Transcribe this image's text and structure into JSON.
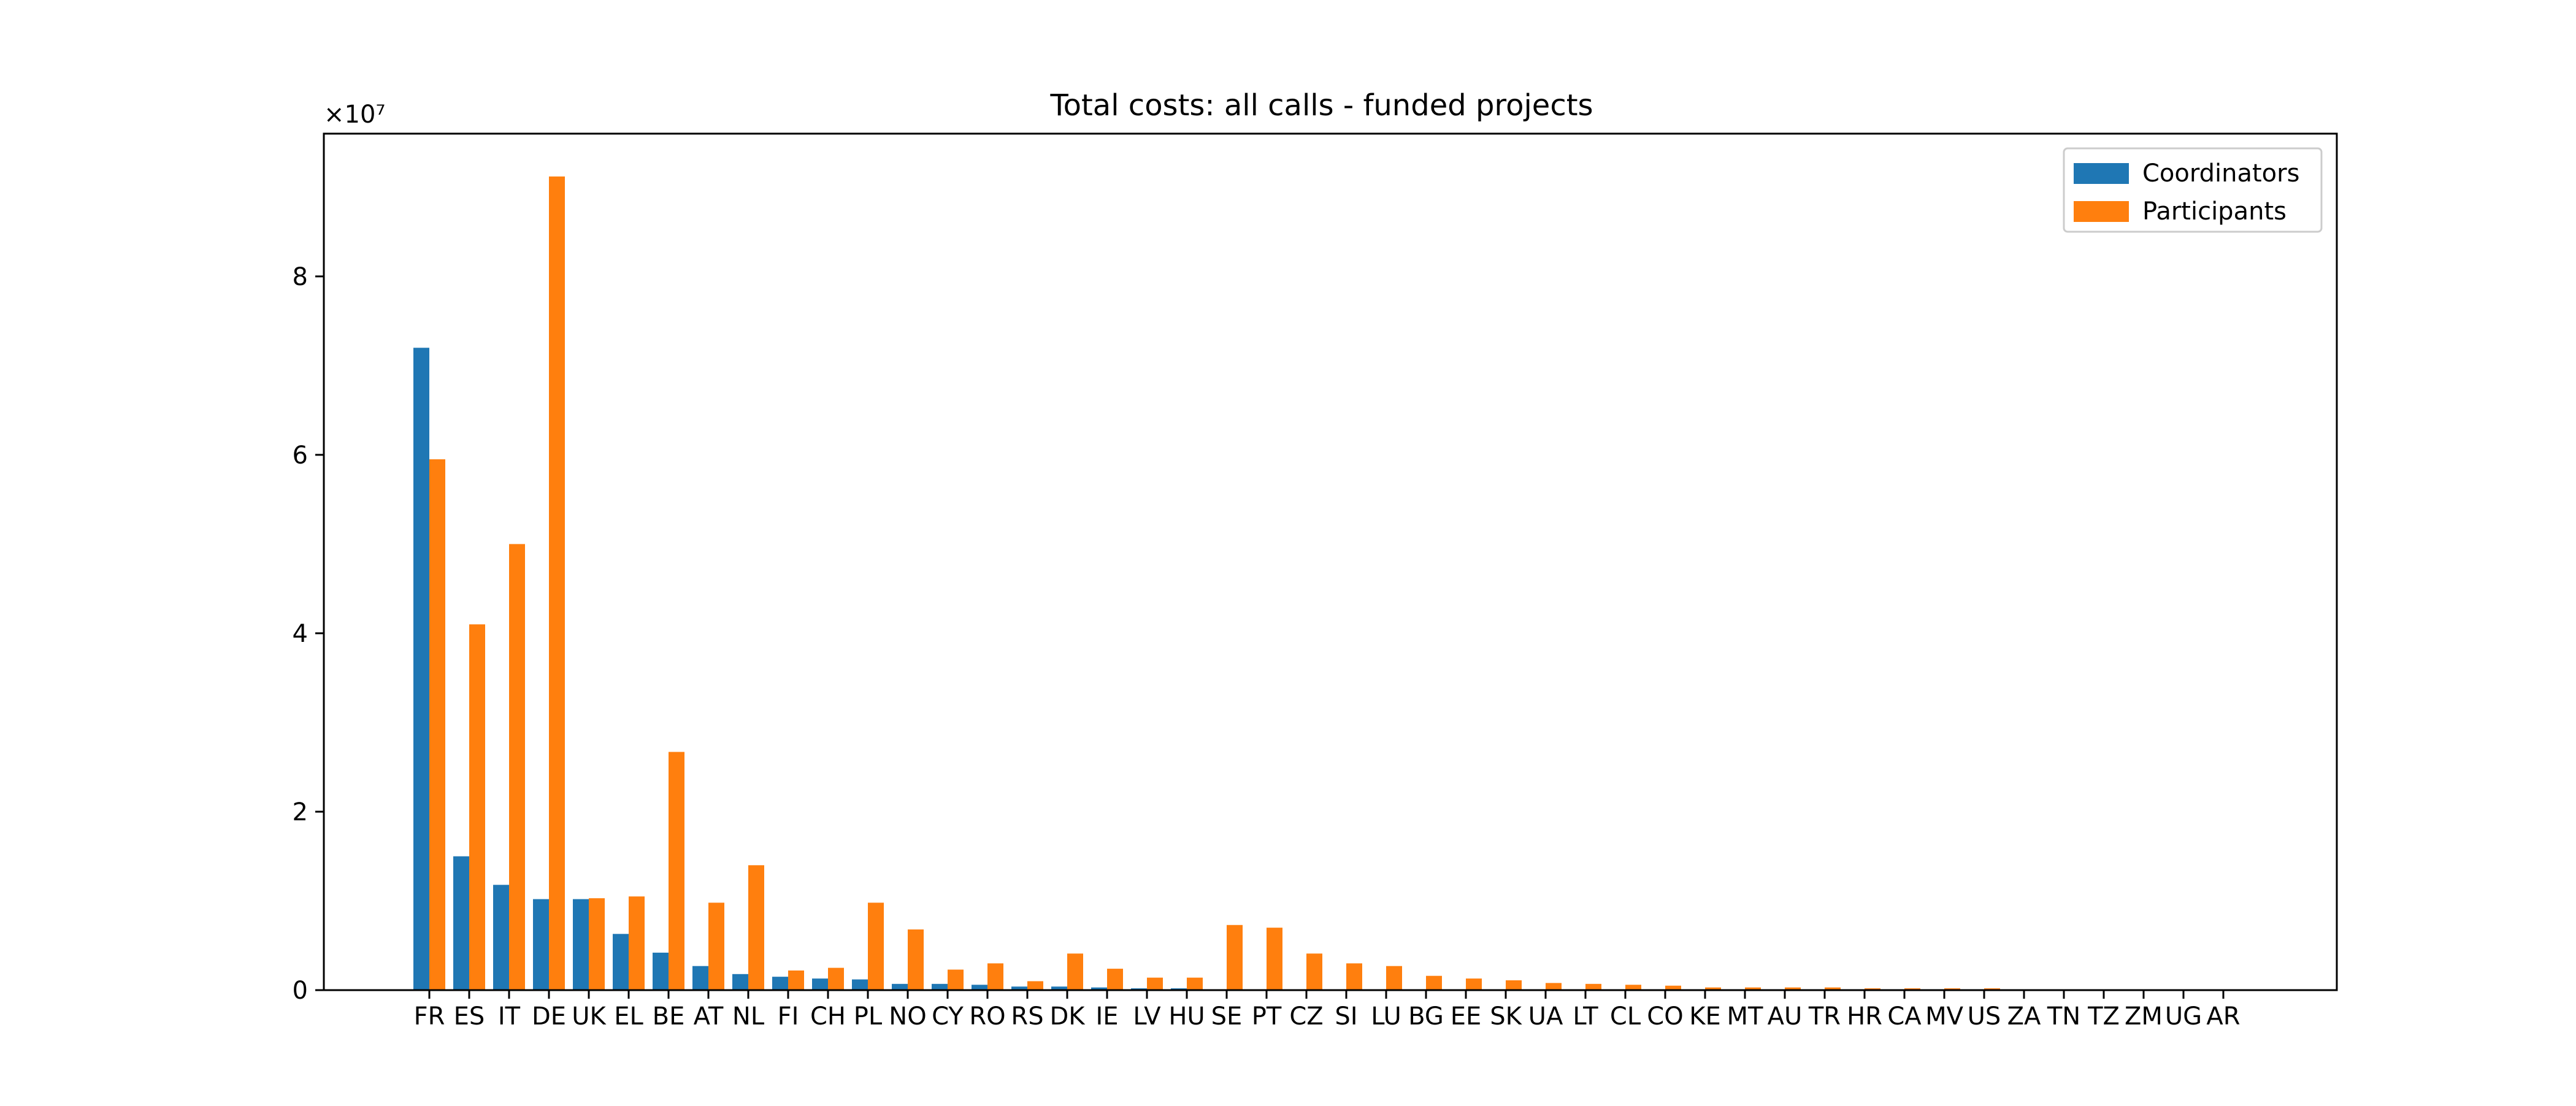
{
  "chart_data": {
    "type": "bar",
    "title": "Total costs: all calls - funded projects",
    "xlabel": "",
    "ylabel": "",
    "y_offset_label": "×10⁷",
    "y_multiplier": 10000000,
    "ylim": [
      0,
      96000000
    ],
    "y_ticks": [
      0,
      20000000,
      40000000,
      60000000,
      80000000
    ],
    "y_tick_labels": [
      "0",
      "2",
      "4",
      "6",
      "8"
    ],
    "grid": false,
    "legend_position": "top-right",
    "categories": [
      "FR",
      "ES",
      "IT",
      "DE",
      "UK",
      "EL",
      "BE",
      "AT",
      "NL",
      "FI",
      "CH",
      "PL",
      "NO",
      "CY",
      "RO",
      "RS",
      "DK",
      "IE",
      "LV",
      "HU",
      "SE",
      "PT",
      "CZ",
      "SI",
      "LU",
      "BG",
      "EE",
      "SK",
      "UA",
      "LT",
      "CL",
      "CO",
      "KE",
      "MT",
      "AU",
      "TR",
      "HR",
      "CA",
      "MV",
      "US",
      "ZA",
      "TN",
      "TZ",
      "ZM",
      "UG",
      "AR"
    ],
    "series": [
      {
        "name": "Coordinators",
        "color": "#1f77b4",
        "values": [
          72000000,
          15000000,
          11800000,
          10200000,
          10200000,
          6300000,
          4200000,
          2700000,
          1800000,
          1500000,
          1300000,
          1200000,
          700000,
          700000,
          600000,
          400000,
          400000,
          300000,
          200000,
          200000,
          0,
          0,
          0,
          0,
          0,
          0,
          0,
          0,
          0,
          0,
          0,
          0,
          0,
          0,
          0,
          0,
          0,
          0,
          0,
          0,
          0,
          0,
          0,
          0,
          0,
          0
        ]
      },
      {
        "name": "Participants",
        "color": "#ff7f0e",
        "values": [
          59500000,
          41000000,
          50000000,
          91200000,
          10300000,
          10500000,
          26700000,
          9800000,
          14000000,
          2200000,
          2500000,
          9800000,
          6800000,
          2300000,
          3000000,
          1000000,
          4100000,
          2400000,
          1400000,
          1400000,
          7300000,
          7000000,
          4100000,
          3000000,
          2700000,
          1600000,
          1300000,
          1100000,
          800000,
          700000,
          600000,
          500000,
          300000,
          300000,
          300000,
          300000,
          200000,
          200000,
          200000,
          200000,
          100000,
          100000,
          100000,
          100000,
          100000,
          100000
        ]
      }
    ]
  }
}
